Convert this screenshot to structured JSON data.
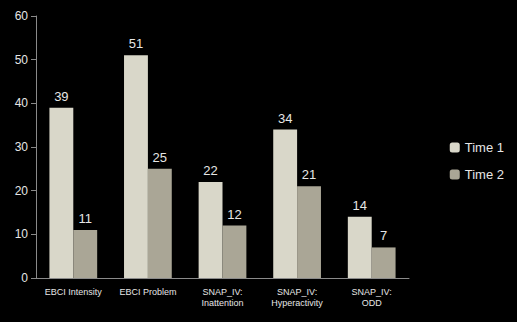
{
  "chart_data": {
    "type": "bar",
    "categories": [
      "EBCI Intensity",
      "EBCI Problem",
      "SNAP_IV: Inattention",
      "SNAP_IV: Hyperactivity",
      "SNAP_IV: ODD"
    ],
    "series": [
      {
        "name": "Time 1",
        "color": "#d9d7c9",
        "values": [
          39,
          51,
          22,
          34,
          14
        ]
      },
      {
        "name": "Time 2",
        "color": "#aaa696",
        "values": [
          11,
          25,
          12,
          21,
          7
        ]
      }
    ],
    "ylim": [
      0,
      60
    ],
    "yticks": [
      0,
      10,
      20,
      30,
      40,
      50,
      60
    ],
    "grid": false,
    "legend": "right",
    "data_labels": true
  }
}
